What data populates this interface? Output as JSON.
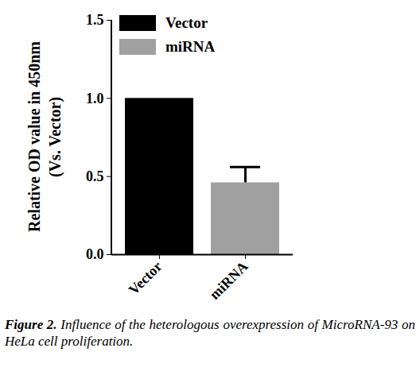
{
  "chart_data": {
    "type": "bar",
    "ylabel": [
      "Relative OD value in 450nm",
      "(Vs. Vector)"
    ],
    "categories": [
      "Vector",
      "miRNA"
    ],
    "values": [
      1.0,
      0.46
    ],
    "errors": [
      null,
      0.1
    ],
    "colors": [
      "#000000",
      "#a0a0a0"
    ],
    "ylim": [
      0,
      1.5
    ],
    "yticks": [
      {
        "value": 0,
        "label": "0.0"
      },
      {
        "value": 0.5,
        "label": "0.5"
      },
      {
        "value": 1,
        "label": "1.0"
      },
      {
        "value": 1.5,
        "label": "1.5"
      }
    ],
    "legend": "top-left",
    "grid": false,
    "caption_label": "Figure 2.",
    "caption": "Influence of the heterologous overexpression of MicroRNA-93 on HeLa cell proliferation."
  }
}
